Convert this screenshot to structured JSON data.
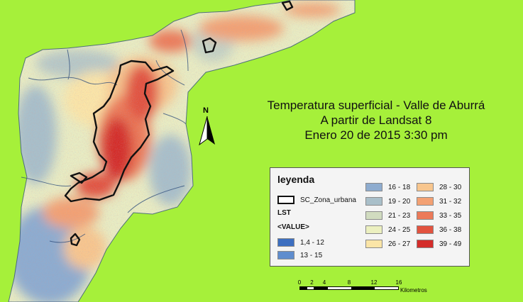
{
  "title": {
    "line1": "Temperatura superficial - Valle de Aburrá",
    "line2": "A partir de Landsat 8",
    "line3": "Enero 20 de 2015 3:30 pm"
  },
  "north_arrow": {
    "label": "N"
  },
  "legend": {
    "title": "leyenda",
    "urban_zone_label": "SC_Zona_urbana",
    "raster_label": "LST",
    "value_label": "<VALUE>",
    "classes": [
      {
        "label": "1,4 - 12",
        "color": "#3d6fc0"
      },
      {
        "label": "13 - 15",
        "color": "#5f8dce"
      },
      {
        "label": "16 - 18",
        "color": "#8eaccf"
      },
      {
        "label": "19 - 20",
        "color": "#a9bfc9"
      },
      {
        "label": "21 - 23",
        "color": "#d1dcc0"
      },
      {
        "label": "24 - 25",
        "color": "#ecf0c0"
      },
      {
        "label": "26 - 27",
        "color": "#fbe5a7"
      },
      {
        "label": "28 - 30",
        "color": "#f8c68e"
      },
      {
        "label": "31 - 32",
        "color": "#f3a173"
      },
      {
        "label": "33 - 35",
        "color": "#ec7a59"
      },
      {
        "label": "36 - 38",
        "color": "#e2533f"
      },
      {
        "label": "39 - 49",
        "color": "#d42d2a"
      }
    ]
  },
  "scale_bar": {
    "ticks": [
      "0",
      "2",
      "4",
      "8",
      "12",
      "16"
    ],
    "unit": "Kilometros"
  }
}
